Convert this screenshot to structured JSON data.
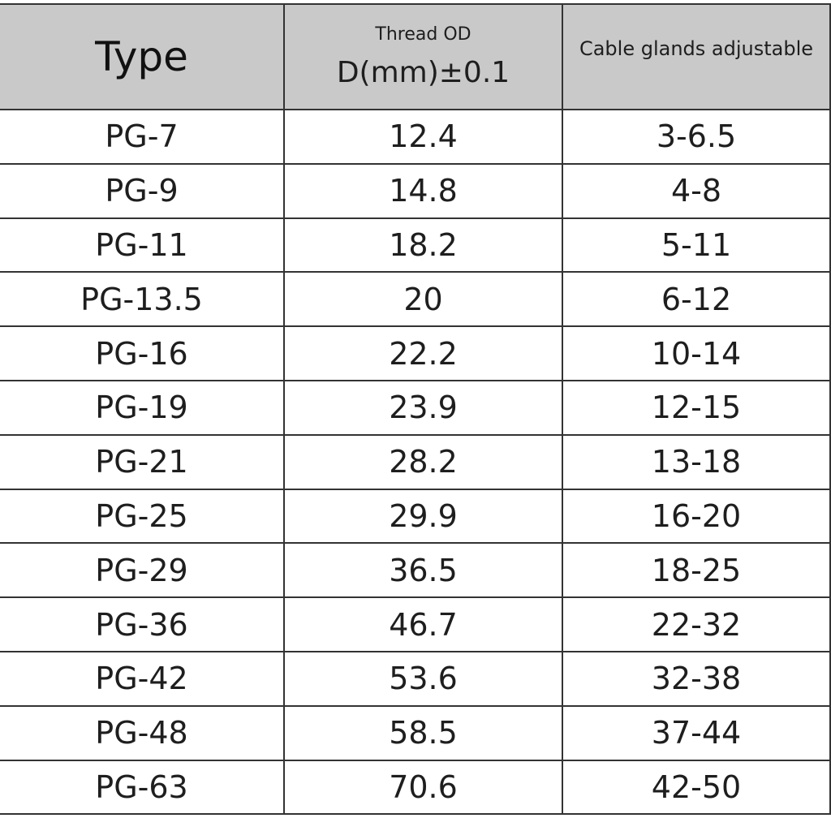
{
  "header": {
    "type": "Type",
    "thread_od": "Thread OD",
    "thread_unit": "D(mm)±0.1",
    "cable": "Cable glands adjustable"
  },
  "table": {
    "rows": [
      [
        "PG-7",
        "12.4",
        "3-6.5"
      ],
      [
        "PG-9",
        "14.8",
        "4-8"
      ],
      [
        "PG-11",
        "18.2",
        "5-11"
      ],
      [
        "PG-13.5",
        "20",
        "6-12"
      ],
      [
        "PG-16",
        "22.2",
        "10-14"
      ],
      [
        "PG-19",
        "23.9",
        "12-15"
      ],
      [
        "PG-21",
        "28.2",
        "13-18"
      ],
      [
        "PG-25",
        "29.9",
        "16-20"
      ],
      [
        "PG-29",
        "36.5",
        "18-25"
      ],
      [
        "PG-36",
        "46.7",
        "22-32"
      ],
      [
        "PG-42",
        "53.6",
        "32-38"
      ],
      [
        "PG-48",
        "58.5",
        "37-44"
      ],
      [
        "PG-63",
        "70.6",
        "42-50"
      ]
    ]
  }
}
